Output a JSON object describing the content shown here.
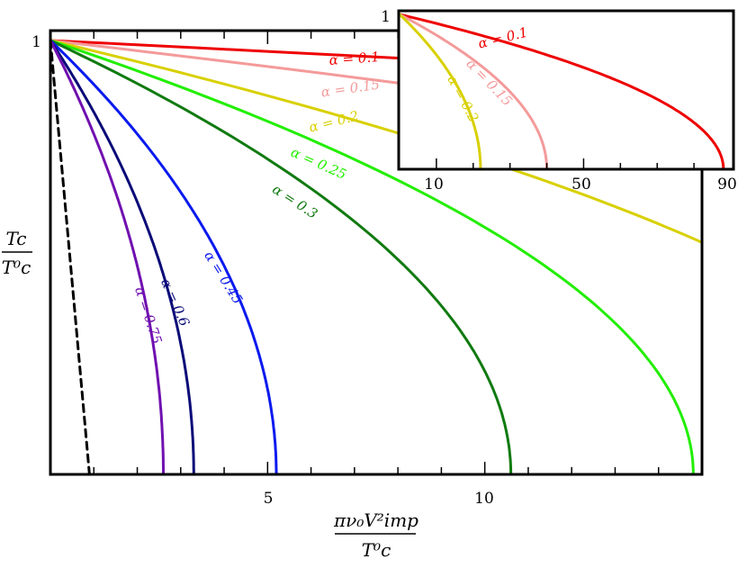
{
  "chart_data": [
    {
      "type": "line",
      "xlabel_top": "πν₀V²imp",
      "xlabel_bottom": "T⁰c",
      "ylabel_top": "Tc",
      "ylabel_bottom": "T⁰c",
      "xlim": [
        0,
        15
      ],
      "ylim": [
        0,
        1
      ],
      "x_tick_labels": [
        "5",
        "10"
      ],
      "y_tick_labels": [
        "1"
      ],
      "grid": false,
      "series": [
        {
          "name": "α = 0.1",
          "color": "#ee0000",
          "x_end": 101,
          "y_at_right": 0.86
        },
        {
          "name": "α = 0.15",
          "color": "#f49a9a",
          "x_end": 43,
          "y_at_right": 0.62
        },
        {
          "name": "α = 0.2",
          "color": "#d8d000",
          "x_end": 21,
          "y_at_right": 0.49
        },
        {
          "name": "α = 0.25",
          "color": "#22ee00",
          "x_end": 14.8,
          "y_at_right": 0.0
        },
        {
          "name": "α = 0.3",
          "color": "#107a10",
          "x_end": 10.6,
          "y_at_right": 0.0
        },
        {
          "name": "α = 0.45",
          "color": "#0a1aee",
          "x_end": 5.2,
          "y_at_right": 0.0
        },
        {
          "name": "α = 0.6",
          "color": "#0a0a78",
          "x_end": 3.3,
          "y_at_right": 0.0
        },
        {
          "name": "α = 0.75",
          "color": "#7010b0",
          "x_end": 2.6,
          "y_at_right": 0.0
        },
        {
          "name": "",
          "color": "#000000",
          "dashed": true,
          "x_end": 0.9,
          "y_at_right": 0.0
        }
      ]
    },
    {
      "type": "line",
      "inset": true,
      "xlim": [
        0,
        90
      ],
      "ylim": [
        0,
        1
      ],
      "x_tick_labels": [
        "10",
        "50",
        "90"
      ],
      "y_tick_labels": [
        "1"
      ],
      "series": [
        {
          "name": "α = 0.1",
          "color": "#ee0000",
          "x_end": 88
        },
        {
          "name": "α = 0.15",
          "color": "#f49a9a",
          "x_end": 40
        },
        {
          "name": "α = 0.2",
          "color": "#d8d000",
          "x_end": 22
        }
      ]
    }
  ]
}
